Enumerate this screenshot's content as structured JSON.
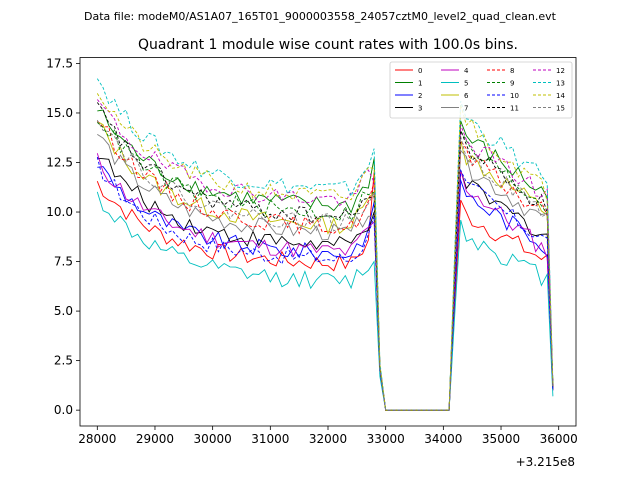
{
  "chart_data": {
    "type": "line",
    "suptitle": "Data file: modeM0/AS1A07_165T01_9000003558_24057cztM0_level2_quad_clean.evt",
    "title": "Quadrant 1 module wise count rates with 100.0s bins.",
    "xlabel": "",
    "ylabel": "",
    "x_offset_label": "+3.215e8",
    "xlim": [
      27700,
      36300
    ],
    "ylim": [
      -0.8,
      17.8
    ],
    "x_ticks": [
      28000,
      29000,
      30000,
      31000,
      32000,
      33000,
      34000,
      35000,
      36000
    ],
    "y_ticks": [
      0.0,
      2.5,
      5.0,
      7.5,
      10.0,
      12.5,
      15.0,
      17.5
    ],
    "x_tick_labels": [
      "28000",
      "29000",
      "30000",
      "31000",
      "32000",
      "33000",
      "34000",
      "35000",
      "36000"
    ],
    "y_tick_labels": [
      "0.0",
      "2.5",
      "5.0",
      "7.5",
      "10.0",
      "12.5",
      "15.0",
      "17.5"
    ],
    "legend_location": "upper right",
    "segments": [
      {
        "x_start": 28000,
        "x_end": 32800,
        "step": 100
      },
      {
        "x_start": 32900,
        "x_end": 33000,
        "step": 100
      },
      {
        "x_start": 33000,
        "x_end": 34100,
        "step": 100
      },
      {
        "x_start": 34200,
        "x_end": 34300,
        "step": 100
      },
      {
        "x_start": 34300,
        "x_end": 35800,
        "step": 100
      },
      {
        "x_start": 35900,
        "x_end": 35900,
        "step": 100
      }
    ],
    "series": [
      {
        "name": "0",
        "color": "#ff0000",
        "dashed": false,
        "start": 11.5,
        "plateau": 7.3,
        "peak": 12.0,
        "rise": 1.5,
        "second_start": 10.0,
        "second_end": 7.5,
        "end_value": 1.0
      },
      {
        "name": "1",
        "color": "#008000",
        "dashed": false,
        "start": 15.2,
        "plateau": 10.2,
        "peak": 12.7,
        "rise": 1.7,
        "second_start": 14.0,
        "second_end": 10.8,
        "end_value": 1.2
      },
      {
        "name": "2",
        "color": "#0000ff",
        "dashed": false,
        "start": 12.5,
        "plateau": 7.8,
        "peak": 10.5,
        "rise": 1.6,
        "second_start": 11.0,
        "second_end": 8.3,
        "end_value": 1.0
      },
      {
        "name": "3",
        "color": "#000000",
        "dashed": false,
        "start": 13.1,
        "plateau": 8.2,
        "peak": 10.0,
        "rise": 1.5,
        "second_start": 11.5,
        "second_end": 8.8,
        "end_value": 1.1
      },
      {
        "name": "4",
        "color": "#bf00bf",
        "dashed": false,
        "start": 12.6,
        "plateau": 7.9,
        "peak": 9.5,
        "rise": 1.5,
        "second_start": 11.5,
        "second_end": 8.0,
        "end_value": 1.0
      },
      {
        "name": "5",
        "color": "#00bfbf",
        "dashed": false,
        "start": 10.8,
        "plateau": 6.4,
        "peak": 7.5,
        "rise": 1.2,
        "second_start": 9.0,
        "second_end": 6.6,
        "end_value": 0.7
      },
      {
        "name": "6",
        "color": "#bfbf00",
        "dashed": false,
        "start": 14.5,
        "plateau": 9.2,
        "peak": 11.0,
        "rise": 1.7,
        "second_start": 13.0,
        "second_end": 10.0,
        "end_value": 1.2
      },
      {
        "name": "7",
        "color": "#808080",
        "dashed": false,
        "start": 14.0,
        "plateau": 8.8,
        "peak": 9.8,
        "rise": 1.6,
        "second_start": 12.5,
        "second_end": 9.5,
        "end_value": 1.1
      },
      {
        "name": "8",
        "color": "#ff0000",
        "dashed": true,
        "start": 14.8,
        "plateau": 9.1,
        "peak": 11.5,
        "rise": 1.6,
        "second_start": 13.0,
        "second_end": 9.8,
        "end_value": 1.1
      },
      {
        "name": "9",
        "color": "#008000",
        "dashed": true,
        "start": 14.9,
        "plateau": 9.8,
        "peak": 11.0,
        "rise": 1.7,
        "second_start": 13.5,
        "second_end": 10.3,
        "end_value": 1.2
      },
      {
        "name": "10",
        "color": "#0000ff",
        "dashed": true,
        "start": 12.4,
        "plateau": 7.5,
        "peak": 9.8,
        "rise": 1.5,
        "second_start": 11.5,
        "second_end": 8.5,
        "end_value": 1.0
      },
      {
        "name": "11",
        "color": "#000000",
        "dashed": true,
        "start": 15.3,
        "plateau": 9.6,
        "peak": 10.8,
        "rise": 1.7,
        "second_start": 13.5,
        "second_end": 10.2,
        "end_value": 1.2
      },
      {
        "name": "12",
        "color": "#bf00bf",
        "dashed": true,
        "start": 15.6,
        "plateau": 10.5,
        "peak": 11.5,
        "rise": 1.8,
        "second_start": 13.8,
        "second_end": 10.8,
        "end_value": 1.3
      },
      {
        "name": "13",
        "color": "#00bfbf",
        "dashed": true,
        "start": 16.8,
        "plateau": 11.0,
        "peak": 13.2,
        "rise": 1.9,
        "second_start": 15.0,
        "second_end": 11.5,
        "end_value": 1.4
      },
      {
        "name": "14",
        "color": "#bfbf00",
        "dashed": true,
        "start": 16.2,
        "plateau": 10.6,
        "peak": 12.2,
        "rise": 1.8,
        "second_start": 14.8,
        "second_end": 11.0,
        "end_value": 1.3
      },
      {
        "name": "15",
        "color": "#808080",
        "dashed": true,
        "start": 15.0,
        "plateau": 9.3,
        "peak": 11.0,
        "rise": 1.7,
        "second_start": 13.2,
        "second_end": 9.8,
        "end_value": 1.1
      }
    ]
  }
}
